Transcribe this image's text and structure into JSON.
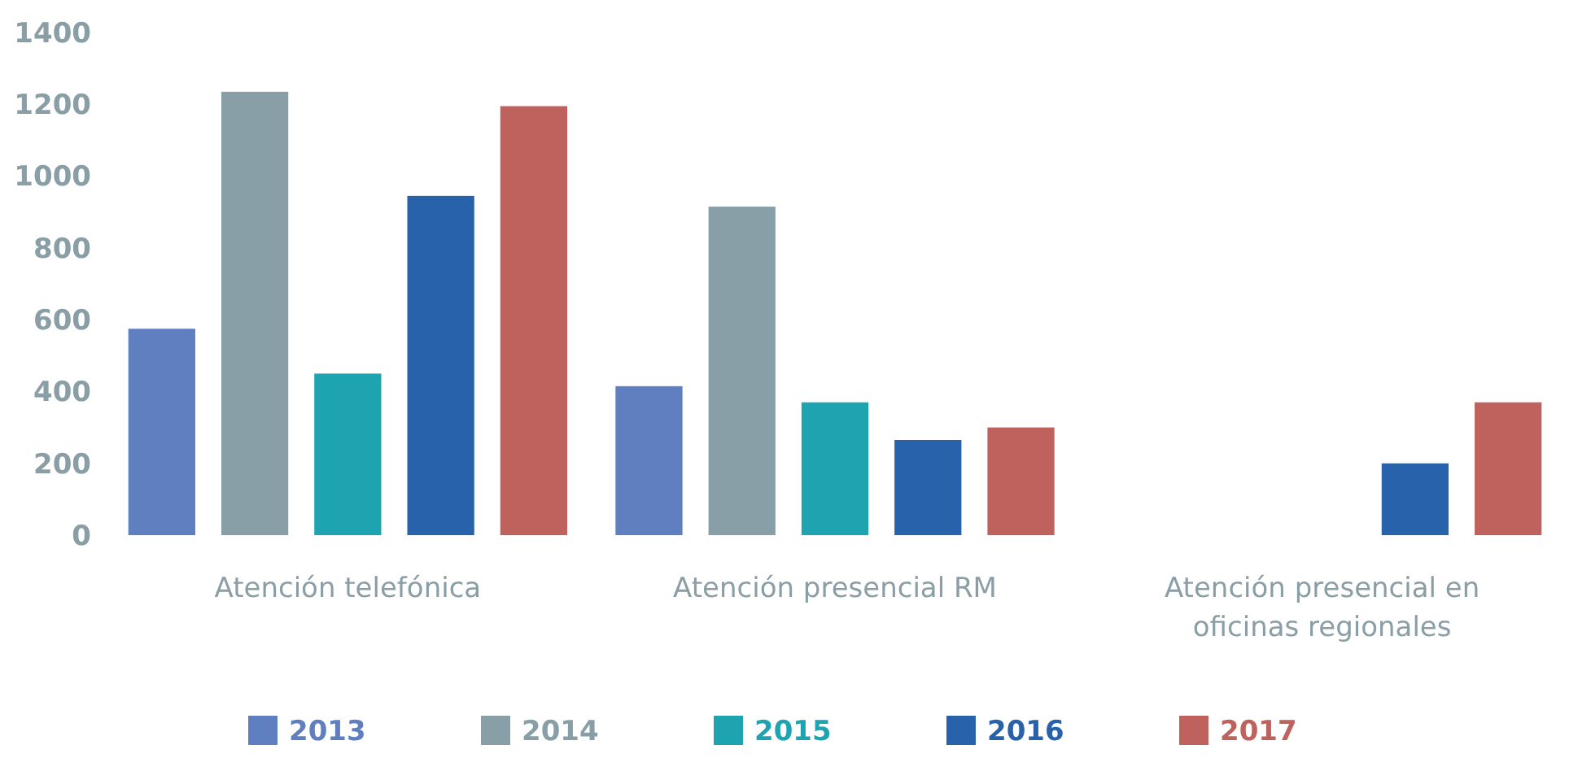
{
  "chart_data": {
    "type": "bar",
    "categories": [
      "Atención telefónica",
      "Atención presencial RM",
      "Atención presencial en oficinas regionales"
    ],
    "series": [
      {
        "name": "2013",
        "color": "#607fc0",
        "values": [
          575,
          415,
          null
        ]
      },
      {
        "name": "2014",
        "color": "#889fa8",
        "values": [
          1235,
          915,
          null
        ]
      },
      {
        "name": "2015",
        "color": "#1ea3b1",
        "values": [
          450,
          370,
          null
        ]
      },
      {
        "name": "2016",
        "color": "#2862ab",
        "values": [
          945,
          265,
          200
        ]
      },
      {
        "name": "2017",
        "color": "#bf625e",
        "values": [
          1195,
          300,
          370
        ]
      }
    ],
    "ylim": [
      0,
      1400
    ],
    "yticks": [
      0,
      200,
      400,
      600,
      800,
      1000,
      1200,
      1400
    ],
    "grid": false,
    "legend": "bottom"
  }
}
